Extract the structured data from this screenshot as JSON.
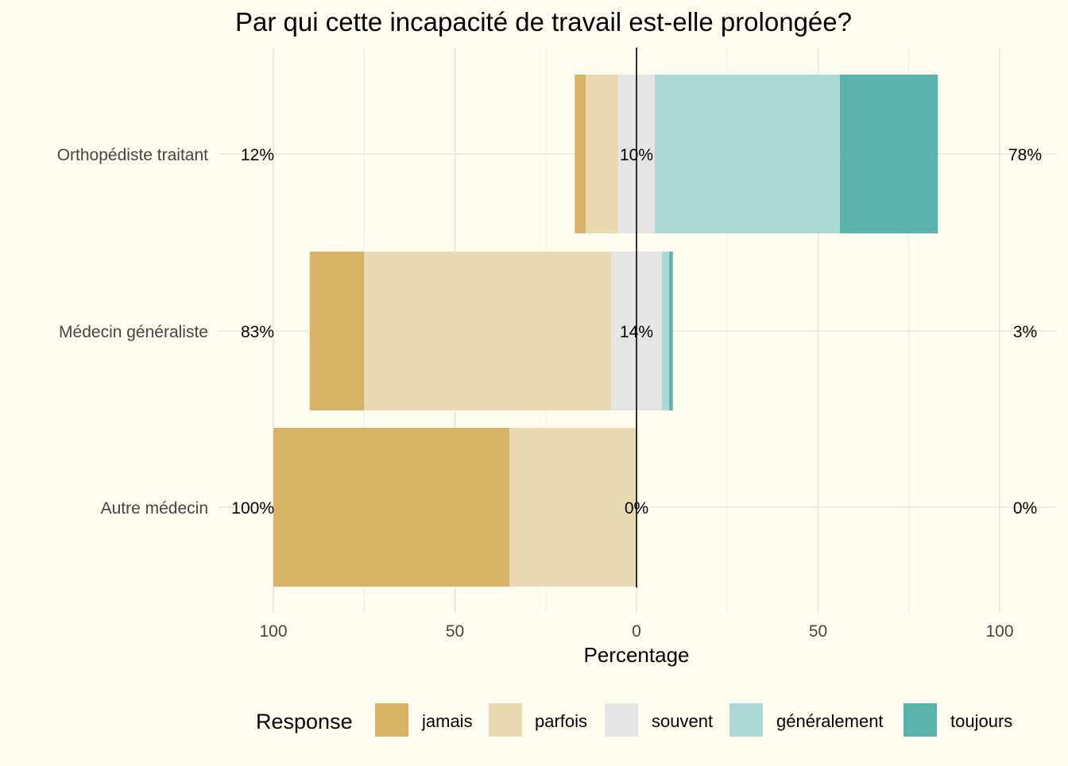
{
  "chart_data": {
    "type": "bar",
    "subtype": "diverging-stacked-horizontal",
    "title": "Par qui cette incapacité de travail est-elle prolongée?",
    "xlabel": "Percentage",
    "ylabel": "",
    "xlim": [
      -100,
      100
    ],
    "x_ticks": [
      -100,
      -50,
      0,
      50,
      100
    ],
    "x_tick_labels": [
      "100",
      "50",
      "0",
      "50",
      "100"
    ],
    "grid": true,
    "categories": [
      "Orthopédiste traitant",
      "Médecin généraliste",
      "Autre médecin"
    ],
    "series": [
      {
        "name": "jamais",
        "color": "#D8B365",
        "values": [
          3,
          15,
          65
        ]
      },
      {
        "name": "parfois",
        "color": "#EBD9B2",
        "values": [
          9,
          68,
          35
        ]
      },
      {
        "name": "souvent",
        "color": "#E5E5E5",
        "values": [
          10,
          14,
          0
        ]
      },
      {
        "name": "généralement",
        "color": "#ACD9D5",
        "values": [
          51,
          2,
          0
        ]
      },
      {
        "name": "toujours",
        "color": "#5AB4AC",
        "values": [
          27,
          1,
          0
        ]
      }
    ],
    "left_labels": [
      "12%",
      "83%",
      "100%"
    ],
    "center_labels": [
      "10%",
      "14%",
      "0%"
    ],
    "right_labels": [
      "78%",
      "3%",
      "0%"
    ],
    "legend": {
      "title": "Response",
      "position": "bottom"
    }
  }
}
